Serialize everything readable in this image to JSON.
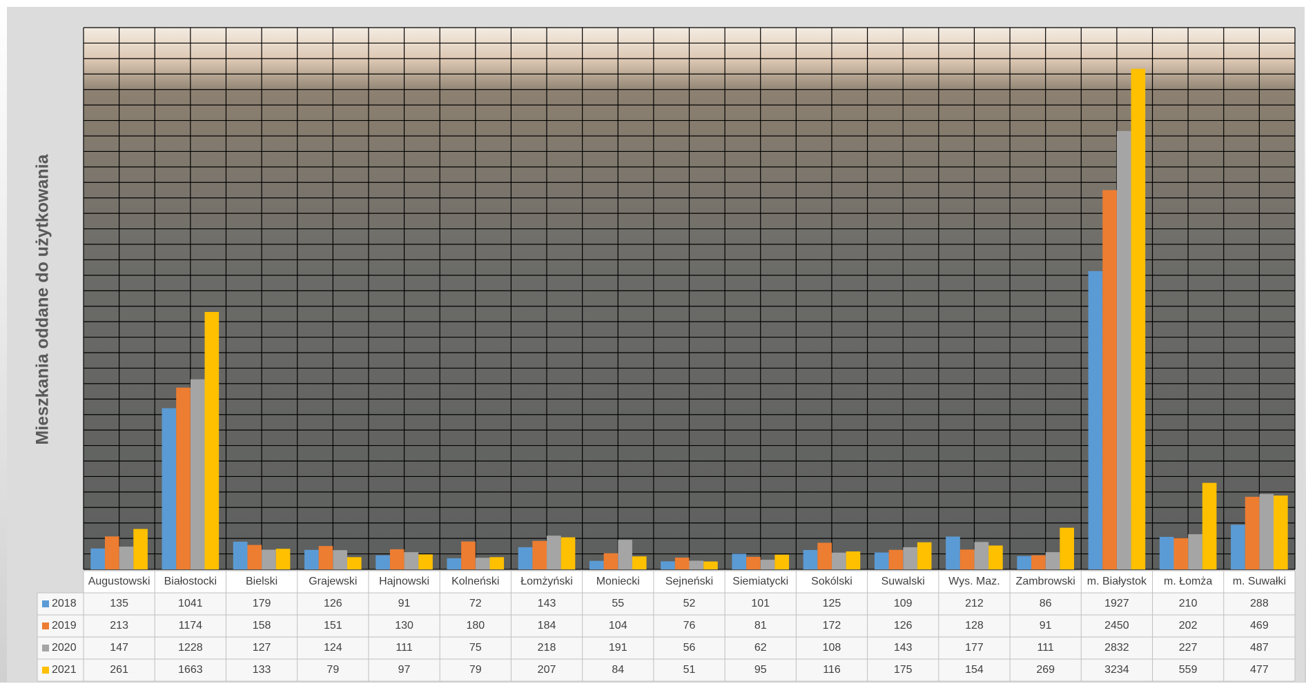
{
  "chart_data": {
    "type": "bar",
    "y_label": "Mieszkania oddane do użytkowania",
    "categories": [
      "Augustowski",
      "Białostocki",
      "Bielski",
      "Grajewski",
      "Hajnowski",
      "Kolneński",
      "Łomżyński",
      "Moniecki",
      "Sejneński",
      "Siemiatycki",
      "Sokólski",
      "Suwalski",
      "Wys. Maz.",
      "Zambrowski",
      "m. Białystok",
      "m. Łomża",
      "m. Suwałki"
    ],
    "series": [
      {
        "name": "2018",
        "color": "#5b9bd5",
        "values": [
          135,
          1041,
          179,
          126,
          91,
          72,
          143,
          55,
          52,
          101,
          125,
          109,
          212,
          86,
          1927,
          210,
          288
        ]
      },
      {
        "name": "2019",
        "color": "#ed7d31",
        "values": [
          213,
          1174,
          158,
          151,
          130,
          180,
          184,
          104,
          76,
          81,
          172,
          126,
          128,
          91,
          2450,
          202,
          469
        ]
      },
      {
        "name": "2020",
        "color": "#a5a5a5",
        "values": [
          147,
          1228,
          127,
          124,
          111,
          75,
          218,
          191,
          56,
          62,
          108,
          143,
          177,
          111,
          2832,
          227,
          487
        ]
      },
      {
        "name": "2021",
        "color": "#ffc000",
        "values": [
          261,
          1663,
          133,
          79,
          97,
          79,
          207,
          84,
          51,
          95,
          116,
          175,
          154,
          269,
          3234,
          559,
          477
        ]
      }
    ],
    "ylim": [
      0,
      3500
    ],
    "yticks": [
      0,
      100,
      200,
      300,
      400,
      500,
      600,
      700,
      800,
      900,
      1000,
      1100,
      1200,
      1300,
      1400,
      1500,
      1600,
      1700,
      1800,
      1900,
      2000,
      2100,
      2200,
      2300,
      2400,
      2500,
      2600,
      2700,
      2800,
      2900,
      3000,
      3100,
      3200,
      3300,
      3400,
      3500
    ],
    "grid": true
  }
}
